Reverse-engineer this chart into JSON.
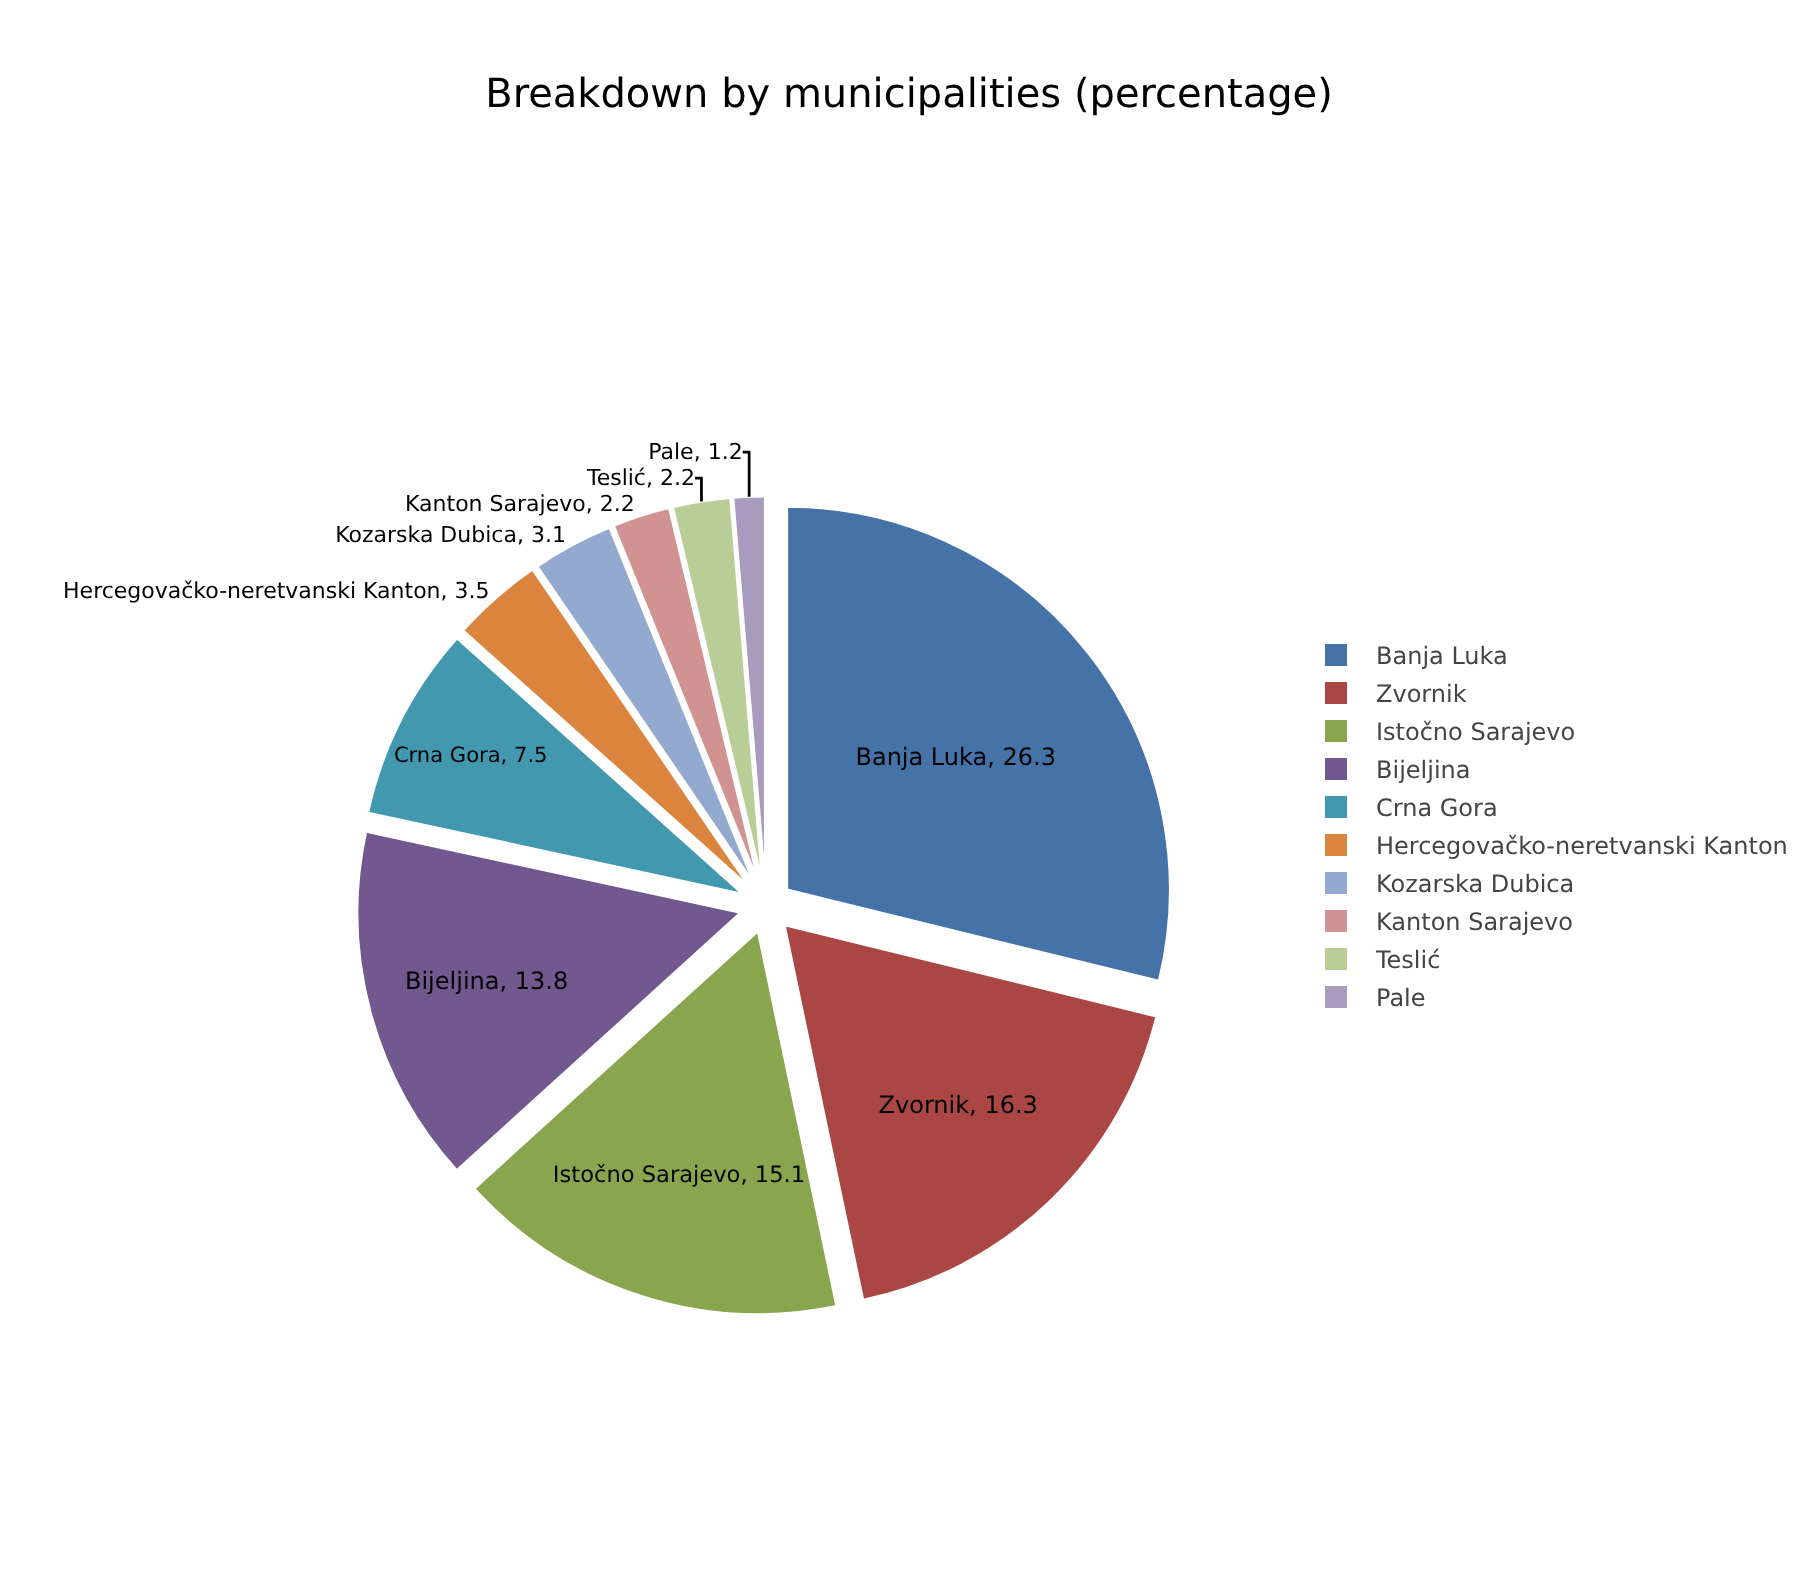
{
  "chart_data": {
    "type": "pie",
    "title": "Breakdown by municipalities (percentage)",
    "categories": [
      "Banja Luka",
      "Zvornik",
      "Istočno Sarajevo",
      "Bijeljina",
      "Crna Gora",
      "Hercegovačko-neretvanski Kanton",
      "Kozarska Dubica",
      "Kanton Sarajevo",
      "Teslić",
      "Pale"
    ],
    "values": [
      26.3,
      16.3,
      15.1,
      13.8,
      7.5,
      3.5,
      3.1,
      2.2,
      2.2,
      1.2
    ],
    "colors": [
      "#4572a7",
      "#aa4643",
      "#89a54e",
      "#71588f",
      "#4198af",
      "#db843d",
      "#93a9cf",
      "#d19392",
      "#b9cd96",
      "#a99bbd"
    ],
    "value_labels": [
      "Banja Luka, 26.3",
      "Zvornik, 16.3",
      "Istočno Sarajevo, 15.1",
      "Bijeljina, 13.8",
      "Crna Gora, 7.5",
      "Hercegovačko-neretvanski Kanton, 3.5",
      "Kozarska Dubica, 3.1",
      "Kanton Sarajevo, 2.2",
      "Teslić, 2.2",
      "Pale, 1.2"
    ],
    "legend": "right"
  }
}
